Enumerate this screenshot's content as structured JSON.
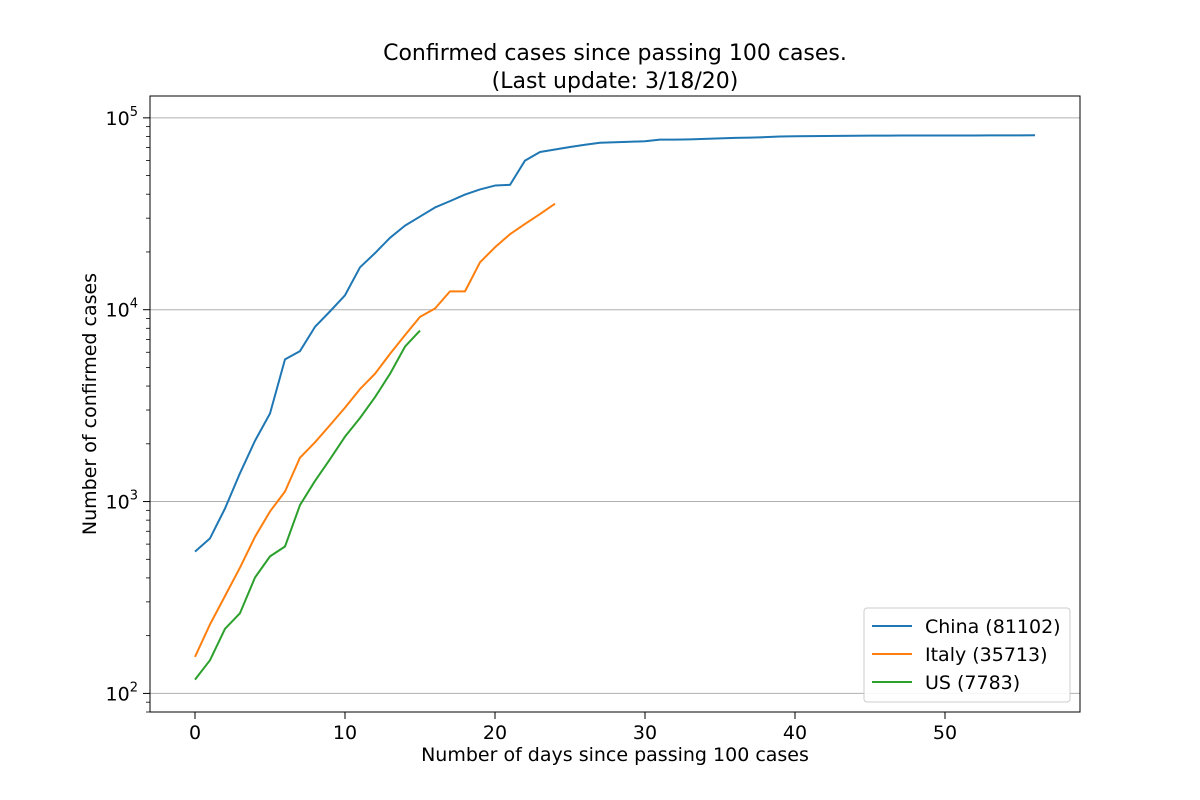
{
  "chart_data": {
    "type": "line",
    "title_line1": "Confirmed cases since passing 100 cases.",
    "title_line2": "(Last update: 3/18/20)",
    "xlabel": "Number of days since passing 100 cases",
    "ylabel": "Number of confirmed cases",
    "yscale": "log",
    "xlim": [
      -3,
      59
    ],
    "ylim": [
      80,
      130000
    ],
    "xticks": [
      0,
      10,
      20,
      30,
      40,
      50
    ],
    "yticks": [
      {
        "value": 100,
        "base": "10",
        "exp": "2"
      },
      {
        "value": 1000,
        "base": "10",
        "exp": "3"
      },
      {
        "value": 10000,
        "base": "10",
        "exp": "4"
      },
      {
        "value": 100000,
        "base": "10",
        "exp": "5"
      }
    ],
    "grid": "y-major",
    "legend_position": "lower-right",
    "series": [
      {
        "name": "China (81102)",
        "color": "#1f77b4",
        "x": [
          0,
          1,
          2,
          3,
          4,
          5,
          6,
          7,
          8,
          9,
          10,
          11,
          12,
          13,
          14,
          15,
          16,
          17,
          18,
          19,
          20,
          21,
          22,
          23,
          24,
          25,
          26,
          27,
          28,
          29,
          30,
          31,
          32,
          33,
          34,
          35,
          36,
          37,
          38,
          39,
          40,
          41,
          42,
          43,
          44,
          45,
          46,
          47,
          48,
          49,
          50,
          51,
          52,
          53,
          54,
          55,
          56
        ],
        "values": [
          548,
          643,
          920,
          1406,
          2075,
          2877,
          5509,
          6087,
          8141,
          9802,
          11891,
          16630,
          19716,
          23707,
          27440,
          30587,
          34110,
          36814,
          39829,
          42354,
          44386,
          44759,
          59895,
          66358,
          68413,
          70513,
          72434,
          74211,
          74619,
          75077,
          75550,
          77001,
          77022,
          77241,
          77754,
          78166,
          78600,
          78928,
          79356,
          79932,
          80136,
          80261,
          80386,
          80537,
          80690,
          80770,
          80823,
          80860,
          80887,
          80921,
          80932,
          80945,
          80977,
          81003,
          81033,
          81058,
          81102
        ]
      },
      {
        "name": "Italy (35713)",
        "color": "#ff7f0e",
        "x": [
          0,
          1,
          2,
          3,
          4,
          5,
          6,
          7,
          8,
          9,
          10,
          11,
          12,
          13,
          14,
          15,
          16,
          17,
          18,
          19,
          20,
          21,
          22,
          23,
          24
        ],
        "values": [
          155,
          229,
          322,
          453,
          655,
          888,
          1128,
          1694,
          2036,
          2502,
          3089,
          3858,
          4636,
          5883,
          7375,
          9172,
          10149,
          12462,
          12462,
          17660,
          21157,
          24747,
          27980,
          31506,
          35713
        ]
      },
      {
        "name": "US (7783)",
        "color": "#2ca02c",
        "x": [
          0,
          1,
          2,
          3,
          4,
          5,
          6,
          7,
          8,
          9,
          10,
          11,
          12,
          13,
          14,
          15
        ],
        "values": [
          118,
          149,
          217,
          262,
          402,
          518,
          583,
          959,
          1281,
          1663,
          2179,
          2726,
          3499,
          4632,
          6421,
          7783
        ]
      }
    ]
  }
}
